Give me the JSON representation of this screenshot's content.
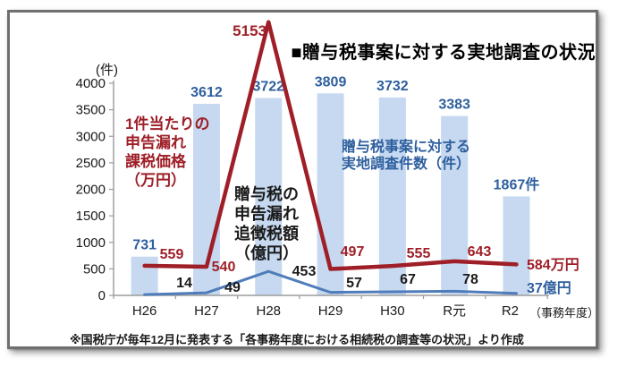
{
  "title": "■贈与税事案に対する実地調査の状況",
  "footer": "※国税庁が毎年12月に発表する「各事務年度における相続税の調査等の状況」より作成",
  "colors": {
    "bar_fill": "#c6d9f0",
    "bar_label": "#2e5f9e",
    "red_line": "#9f1f28",
    "blue_line": "#4f7cba",
    "black_label": "#1a1a1a",
    "axis": "#9b9b9b"
  },
  "chart_data": {
    "type": "bar+line combo",
    "categories": [
      "H26",
      "H27",
      "H28",
      "H29",
      "H30",
      "R元",
      "R2"
    ],
    "x_axis_suffix": "（事務年度）",
    "y_axis_unit": "(件)",
    "ylim": [
      0,
      4000
    ],
    "y_tick_step": 500,
    "grid": false,
    "legend_position": "inline text annotations",
    "series": [
      {
        "name": "贈与税事案に対する実地調査件数（件）",
        "type": "bar",
        "values": [
          731,
          3612,
          3722,
          3809,
          3732,
          3383,
          1867
        ],
        "labels": [
          "731",
          "3612",
          "3722",
          "3809",
          "3732",
          "3383",
          "1867件"
        ]
      },
      {
        "name": "1件当たりの申告漏れ課税価格（万円）",
        "type": "line",
        "values": [
          559,
          540,
          5153,
          497,
          555,
          643,
          584
        ],
        "labels": [
          "559",
          "540",
          "5153",
          "497",
          "555",
          "643",
          "584万円"
        ]
      },
      {
        "name": "贈与税の申告漏れ追徴税額（億円）",
        "type": "line",
        "values": [
          14,
          49,
          453,
          57,
          67,
          78,
          37
        ],
        "labels": [
          "14",
          "49",
          "453",
          "57",
          "67",
          "78",
          "37億円"
        ]
      }
    ],
    "annotations": {
      "red": {
        "lines": [
          "1件当たりの",
          "申告漏れ",
          "課税価格",
          "（万円）"
        ]
      },
      "black": {
        "lines": [
          "贈与税の",
          "申告漏れ",
          "追徴税額",
          "（億円）"
        ]
      },
      "blue": {
        "lines": [
          "贈与税事案に対する",
          "実地調査件数（件）"
        ]
      }
    }
  }
}
